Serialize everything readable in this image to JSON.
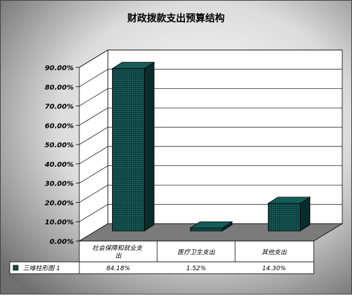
{
  "chart_data": {
    "type": "bar",
    "title": "财政拨款支出预算结构",
    "categories": [
      "社会保障和就业支出",
      "医疗卫生支出",
      "其他支出"
    ],
    "series": [
      {
        "name": "三维柱形图 1",
        "values": [
          84.18,
          1.52,
          14.3
        ]
      }
    ],
    "value_labels": [
      "84.18%",
      "1.52%",
      "14.30%"
    ],
    "y_ticks": [
      "0.00%",
      "10.00%",
      "20.00%",
      "30.00%",
      "40.00%",
      "50.00%",
      "60.00%",
      "70.00%",
      "80.00%",
      "90.00%"
    ],
    "ylim": [
      0,
      100
    ],
    "grid": true,
    "legend": "bottom-left data table",
    "colors": {
      "bar_front": "#0b4442",
      "bar_side": "#072c2b",
      "bar_top": "#155d59",
      "floor": "#7b7b7b",
      "background_dark": "#7a7a7a",
      "background_light": "#ffffff"
    }
  }
}
